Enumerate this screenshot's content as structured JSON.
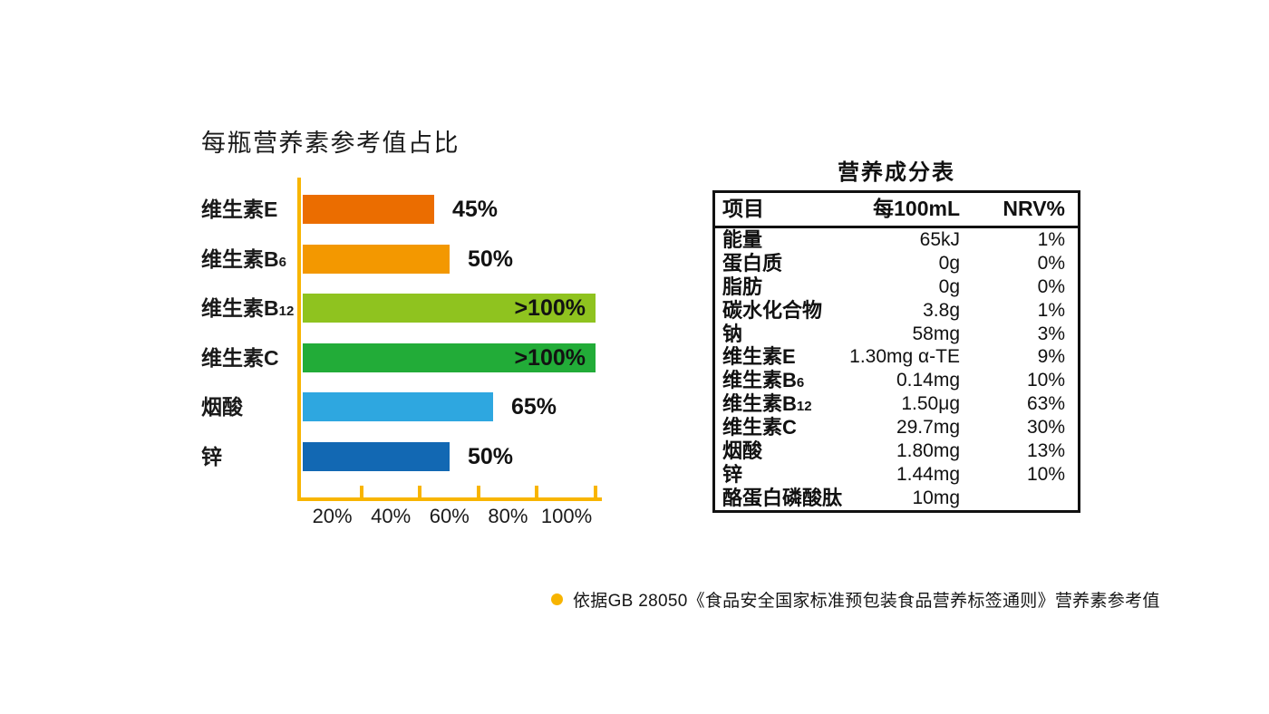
{
  "chart_data": {
    "type": "bar",
    "orientation": "horizontal",
    "title": "每瓶营养素参考值占比",
    "categories": [
      "维生素E",
      "维生素B6",
      "维生素B12",
      "维生素C",
      "烟酸",
      "锌"
    ],
    "values": [
      45,
      50,
      100,
      100,
      65,
      50
    ],
    "display_values": [
      "45%",
      "50%",
      ">100%",
      ">100%",
      "65%",
      "50%"
    ],
    "value_label_inside": [
      false,
      false,
      true,
      true,
      false,
      false
    ],
    "bar_colors": [
      "#EB6D00",
      "#F39800",
      "#8FC31F",
      "#22AC38",
      "#2EA7E0",
      "#1268B3"
    ],
    "x_tick_values": [
      20,
      40,
      60,
      80,
      100
    ],
    "x_tick_labels": [
      "20%",
      "40%",
      "60%",
      "80%",
      "100%"
    ],
    "xlim": [
      0,
      105
    ],
    "axis_color": "#F8B500",
    "grid": false,
    "legend": false
  },
  "table": {
    "title": "营养成分表",
    "headers": [
      "项目",
      "每100mL",
      "NRV%"
    ],
    "rows": [
      {
        "item": "能量",
        "per100ml": "65kJ",
        "nrv": "1%"
      },
      {
        "item": "蛋白质",
        "per100ml": "0g",
        "nrv": "0%"
      },
      {
        "item": "脂肪",
        "per100ml": "0g",
        "nrv": "0%"
      },
      {
        "item": "碳水化合物",
        "per100ml": "3.8g",
        "nrv": "1%"
      },
      {
        "item": "钠",
        "per100ml": "58mg",
        "nrv": "3%"
      },
      {
        "item": "维生素E",
        "per100ml": "1.30mg α-TE",
        "nrv": "9%"
      },
      {
        "item": "维生素B6",
        "per100ml": "0.14mg",
        "nrv": "10%"
      },
      {
        "item": "维生素B12",
        "per100ml": "1.50μg",
        "nrv": "63%"
      },
      {
        "item": "维生素C",
        "per100ml": "29.7mg",
        "nrv": "30%"
      },
      {
        "item": "烟酸",
        "per100ml": "1.80mg",
        "nrv": "13%"
      },
      {
        "item": "锌",
        "per100ml": "1.44mg",
        "nrv": "10%"
      },
      {
        "item": "酪蛋白磷酸肽",
        "per100ml": "10mg",
        "nrv": ""
      }
    ]
  },
  "footnote": {
    "bullet_color": "#F7B400",
    "text": "依据GB 28050《食品安全国家标准预包装食品营养标签通则》营养素参考值"
  }
}
